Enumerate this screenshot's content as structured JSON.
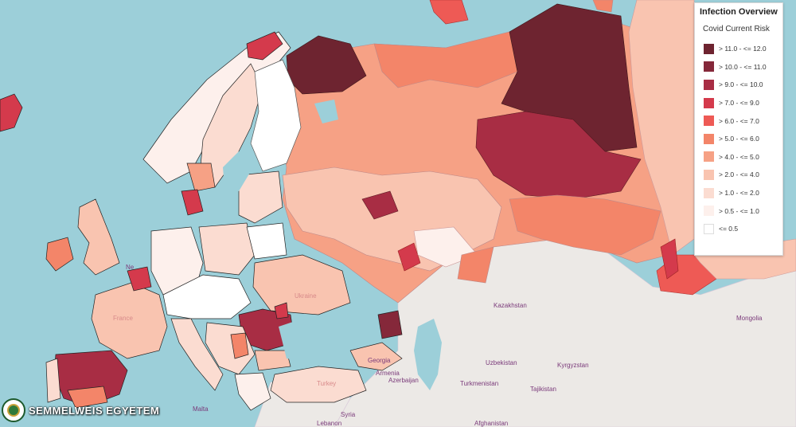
{
  "legend": {
    "title": "Infection Overview",
    "subtitle": "Covid Current Risk",
    "items": [
      {
        "label": "> 11.0 - <= 12.0",
        "color": "#6e2430"
      },
      {
        "label": "> 10.0 - <= 11.0",
        "color": "#85283a"
      },
      {
        "label": "> 9.0 - <= 10.0",
        "color": "#a82d44"
      },
      {
        "label": "> 7.0 - <= 9.0",
        "color": "#d43a4c"
      },
      {
        "label": "> 6.0 - <= 7.0",
        "color": "#ee5a55"
      },
      {
        "label": "> 5.0 - <= 6.0",
        "color": "#f38569"
      },
      {
        "label": "> 4.0 - <= 5.0",
        "color": "#f6a185"
      },
      {
        "label": "> 2.0 - <= 4.0",
        "color": "#f9c4b0"
      },
      {
        "label": "> 1.0 - <= 2.0",
        "color": "#fbdcd1"
      },
      {
        "label": "> 0.5 - <= 1.0",
        "color": "#fdf0ec"
      },
      {
        "label": "<= 0.5",
        "color": "#ffffff"
      }
    ]
  },
  "logo": {
    "text": "SEMMELWEIS EGYETEM"
  },
  "places": {
    "kazakhstan": "Kazakhstan",
    "mongolia": "Mongolia",
    "uzbekistan": "Uzbekistan",
    "kyrgyzstan": "Kyrgyzstan",
    "turkmenistan": "Turkmenistan",
    "tajikistan": "Tajikistan",
    "armenia": "Armenia",
    "azerbaijan": "Azerbaijan",
    "georgia": "Georgia",
    "syria": "Syria",
    "lebanon": "Lebanon",
    "afghanistan": "Afghanistan",
    "malta": "Malta",
    "netherlands": "Ne",
    "france": "France",
    "ukraine": "Ukraine",
    "turkey": "Turkey"
  }
}
